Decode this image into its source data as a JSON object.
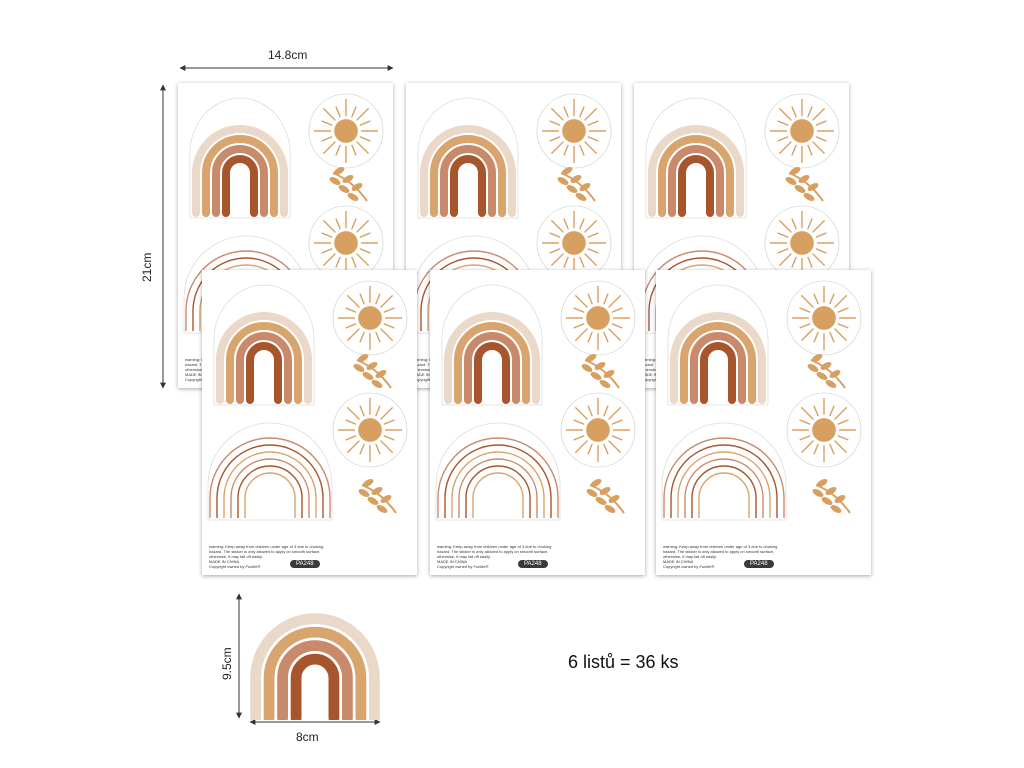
{
  "dimensions": {
    "sheet_width": "14.8cm",
    "sheet_height": "21cm",
    "sticker_height": "9.5cm",
    "sticker_width": "8cm"
  },
  "sheet": {
    "warning_line1": "warning: Keep away from children under age of 3 due to choking",
    "warning_line2": "hazard. The sticker is only allowed to apply on smooth surface,",
    "warning_line3": "otherwise, it may fall off easily.",
    "made_in": "MADE IN CHINA",
    "copyright": "Copyright owned by Funlife®",
    "code": "PA248"
  },
  "caption": "6 listů = 36 ks",
  "colors": {
    "rainbow_outer": "#ead8c8",
    "rainbow_2": "#d9a56e",
    "rainbow_3": "#c98a6c",
    "rainbow_inner": "#a7552c",
    "sun": "#d8a060"
  }
}
